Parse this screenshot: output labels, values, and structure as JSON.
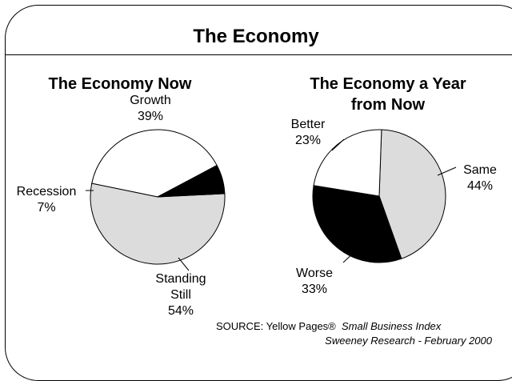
{
  "title": "The Economy",
  "chart_data": [
    {
      "type": "pie",
      "title": "The Economy Now",
      "slices": [
        {
          "label": "Growth",
          "value": 39,
          "display": "39%",
          "color": "#ffffff"
        },
        {
          "label": "Standing Still",
          "label_lines": [
            "Standing",
            "Still"
          ],
          "value": 54,
          "display": "54%",
          "color": "#dcdcdc"
        },
        {
          "label": "Recession",
          "value": 7,
          "display": "7%",
          "color": "#000000"
        }
      ]
    },
    {
      "type": "pie",
      "title": "The Economy a Year from Now",
      "title_lines": [
        "The Economy a Year",
        "from Now"
      ],
      "slices": [
        {
          "label": "Same",
          "value": 44,
          "display": "44%",
          "color": "#dcdcdc"
        },
        {
          "label": "Worse",
          "value": 33,
          "display": "33%",
          "color": "#000000"
        },
        {
          "label": "Better",
          "value": 23,
          "display": "23%",
          "color": "#ffffff"
        }
      ]
    }
  ],
  "source": {
    "prefix": "SOURCE: Yellow Pages®",
    "publication": "Small Business Index",
    "line2": "Sweeney Research - February 2000"
  }
}
